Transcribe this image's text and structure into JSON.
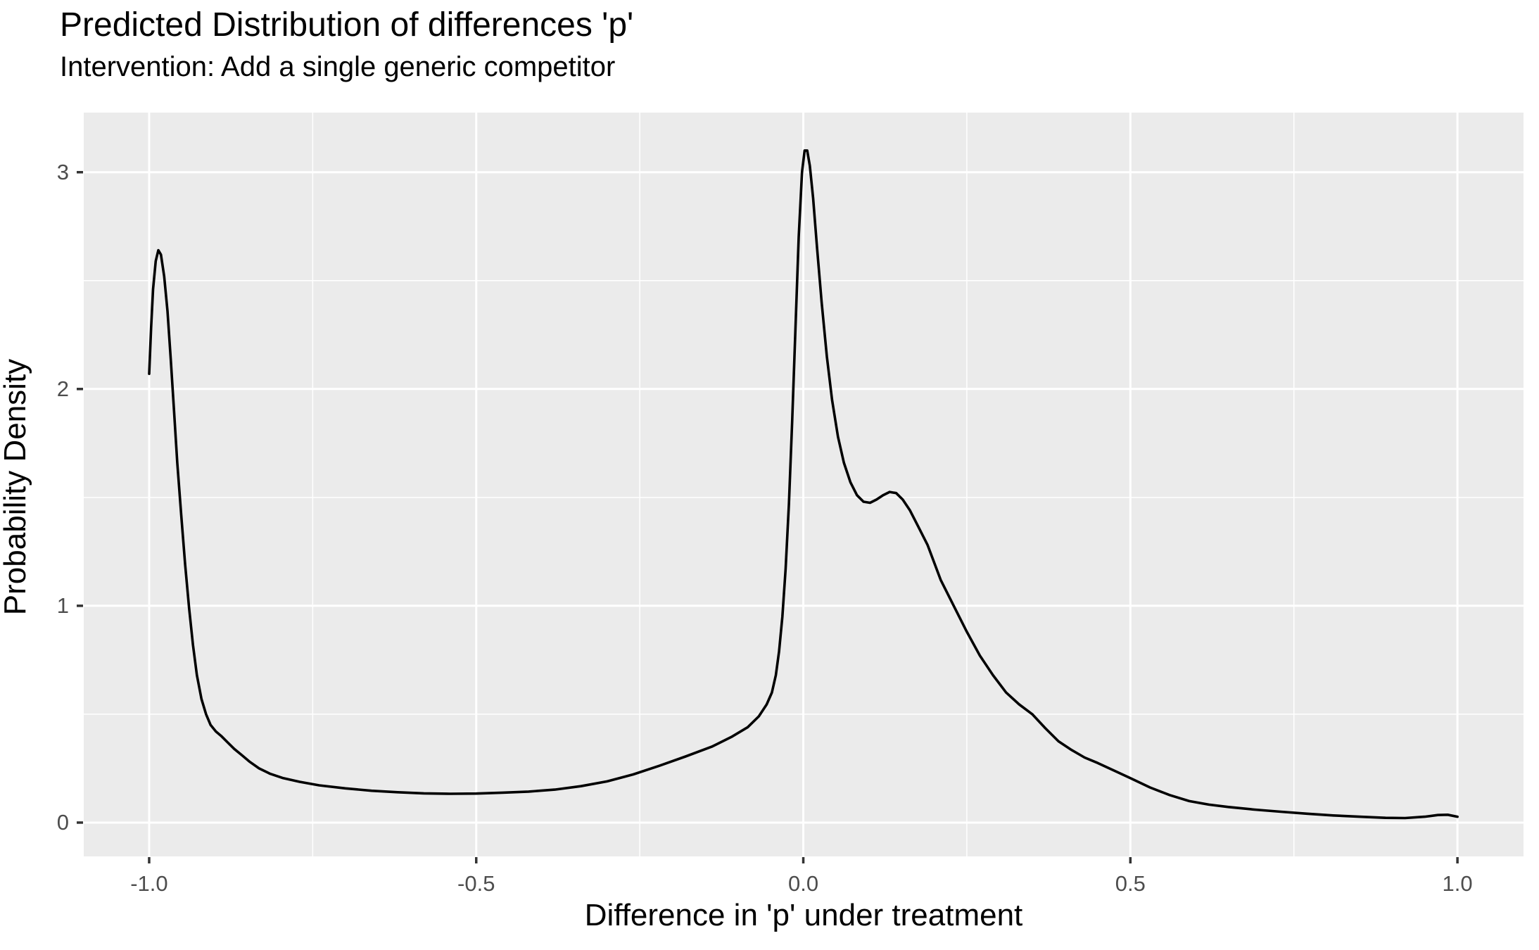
{
  "chart_data": {
    "type": "line",
    "subtype": "kernel-density",
    "title": "Predicted Distribution of differences 'p'",
    "subtitle": "Intervention: Add a single generic competitor",
    "xlabel": "Difference in 'p' under treatment",
    "ylabel": "Probability Density",
    "legend": "none",
    "grid": "major and minor white gridlines on grey panel",
    "x_ticks": [
      -1.0,
      -0.5,
      0.0,
      0.5,
      1.0
    ],
    "x_tick_labels": [
      "-1.0",
      "-0.5",
      "0.0",
      "0.5",
      "1.0"
    ],
    "x_minor_ticks": [
      -0.75,
      -0.25,
      0.25,
      0.75
    ],
    "y_ticks": [
      0,
      1,
      2,
      3
    ],
    "y_tick_labels": [
      "0",
      "1",
      "2",
      "3"
    ],
    "y_minor_ticks": [
      0.5,
      1.5,
      2.5
    ],
    "xlim": [
      -1.1,
      1.101
    ],
    "ylim": [
      -0.156,
      3.275
    ],
    "x_data_range": [
      -1.0,
      1.0
    ],
    "peak_left": {
      "x": -0.985,
      "density": 2.64
    },
    "peak_main": {
      "x": 0.005,
      "density": 3.1
    },
    "shoulder_bump": {
      "x": 0.13,
      "density": 1.53
    },
    "series": [
      {
        "name": "density",
        "color": "#000000",
        "points": [
          [
            -1.0,
            2.07
          ],
          [
            -0.997,
            2.28
          ],
          [
            -0.994,
            2.46
          ],
          [
            -0.99,
            2.59
          ],
          [
            -0.986,
            2.64
          ],
          [
            -0.982,
            2.62
          ],
          [
            -0.977,
            2.52
          ],
          [
            -0.972,
            2.36
          ],
          [
            -0.967,
            2.14
          ],
          [
            -0.962,
            1.9
          ],
          [
            -0.957,
            1.66
          ],
          [
            -0.951,
            1.42
          ],
          [
            -0.945,
            1.19
          ],
          [
            -0.939,
            0.99
          ],
          [
            -0.933,
            0.82
          ],
          [
            -0.927,
            0.68
          ],
          [
            -0.92,
            0.57
          ],
          [
            -0.913,
            0.5
          ],
          [
            -0.906,
            0.45
          ],
          [
            -0.898,
            0.42
          ],
          [
            -0.89,
            0.4
          ],
          [
            -0.88,
            0.37
          ],
          [
            -0.87,
            0.34
          ],
          [
            -0.858,
            0.31
          ],
          [
            -0.846,
            0.28
          ],
          [
            -0.832,
            0.25
          ],
          [
            -0.815,
            0.225
          ],
          [
            -0.795,
            0.205
          ],
          [
            -0.77,
            0.188
          ],
          [
            -0.74,
            0.172
          ],
          [
            -0.7,
            0.158
          ],
          [
            -0.66,
            0.147
          ],
          [
            -0.62,
            0.14
          ],
          [
            -0.58,
            0.135
          ],
          [
            -0.54,
            0.133
          ],
          [
            -0.5,
            0.134
          ],
          [
            -0.46,
            0.138
          ],
          [
            -0.42,
            0.143
          ],
          [
            -0.38,
            0.152
          ],
          [
            -0.34,
            0.168
          ],
          [
            -0.3,
            0.19
          ],
          [
            -0.26,
            0.222
          ],
          [
            -0.22,
            0.262
          ],
          [
            -0.18,
            0.305
          ],
          [
            -0.14,
            0.35
          ],
          [
            -0.11,
            0.395
          ],
          [
            -0.085,
            0.44
          ],
          [
            -0.068,
            0.49
          ],
          [
            -0.056,
            0.545
          ],
          [
            -0.048,
            0.6
          ],
          [
            -0.042,
            0.68
          ],
          [
            -0.037,
            0.79
          ],
          [
            -0.032,
            0.95
          ],
          [
            -0.027,
            1.17
          ],
          [
            -0.022,
            1.47
          ],
          [
            -0.017,
            1.85
          ],
          [
            -0.012,
            2.28
          ],
          [
            -0.007,
            2.7
          ],
          [
            -0.002,
            3.0
          ],
          [
            0.002,
            3.1
          ],
          [
            0.006,
            3.1
          ],
          [
            0.01,
            3.03
          ],
          [
            0.015,
            2.88
          ],
          [
            0.021,
            2.65
          ],
          [
            0.028,
            2.4
          ],
          [
            0.036,
            2.15
          ],
          [
            0.044,
            1.95
          ],
          [
            0.053,
            1.78
          ],
          [
            0.062,
            1.66
          ],
          [
            0.072,
            1.57
          ],
          [
            0.082,
            1.51
          ],
          [
            0.092,
            1.48
          ],
          [
            0.102,
            1.475
          ],
          [
            0.112,
            1.49
          ],
          [
            0.122,
            1.51
          ],
          [
            0.132,
            1.525
          ],
          [
            0.142,
            1.52
          ],
          [
            0.152,
            1.49
          ],
          [
            0.163,
            1.44
          ],
          [
            0.175,
            1.37
          ],
          [
            0.19,
            1.28
          ],
          [
            0.21,
            1.12
          ],
          [
            0.23,
            1.0
          ],
          [
            0.25,
            0.88
          ],
          [
            0.27,
            0.77
          ],
          [
            0.29,
            0.68
          ],
          [
            0.31,
            0.6
          ],
          [
            0.33,
            0.545
          ],
          [
            0.35,
            0.5
          ],
          [
            0.37,
            0.435
          ],
          [
            0.39,
            0.375
          ],
          [
            0.41,
            0.335
          ],
          [
            0.43,
            0.3
          ],
          [
            0.45,
            0.275
          ],
          [
            0.475,
            0.24
          ],
          [
            0.5,
            0.205
          ],
          [
            0.53,
            0.162
          ],
          [
            0.56,
            0.127
          ],
          [
            0.59,
            0.099
          ],
          [
            0.62,
            0.083
          ],
          [
            0.65,
            0.072
          ],
          [
            0.69,
            0.06
          ],
          [
            0.73,
            0.05
          ],
          [
            0.77,
            0.041
          ],
          [
            0.81,
            0.033
          ],
          [
            0.85,
            0.027
          ],
          [
            0.89,
            0.022
          ],
          [
            0.92,
            0.021
          ],
          [
            0.95,
            0.027
          ],
          [
            0.97,
            0.035
          ],
          [
            0.985,
            0.036
          ],
          [
            1.0,
            0.027
          ]
        ]
      }
    ]
  },
  "colors": {
    "background": "#FFFFFF",
    "panel_background": "#EBEBEB",
    "gridline": "#FFFFFF",
    "curve": "#000000",
    "tick_label": "#4D4D4D",
    "tick_mark": "#333333",
    "text": "#000000"
  }
}
